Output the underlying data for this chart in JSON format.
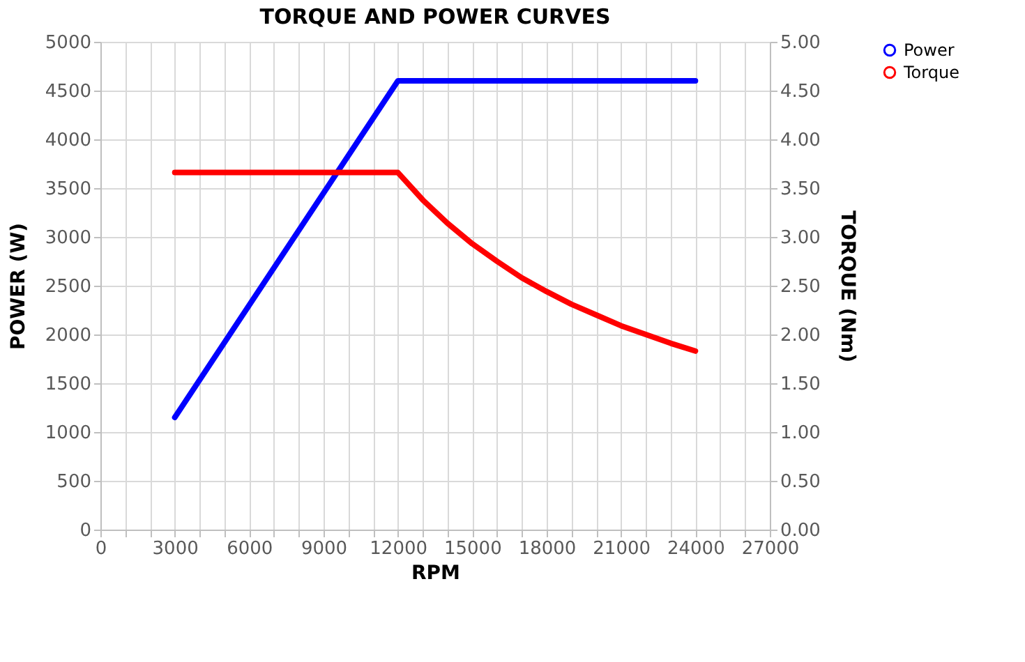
{
  "chart_data": {
    "type": "line",
    "title": "TORQUE AND POWER CURVES",
    "xlabel": "RPM",
    "ylabel": "POWER (W)",
    "y2label": "TORQUE (Nm)",
    "xlim": [
      0,
      27000
    ],
    "xticks": [
      0,
      {
        "value": 1000,
        "label": null
      },
      {
        "value": 2000,
        "label": null
      },
      3000,
      {
        "value": 4000,
        "label": null
      },
      {
        "value": 5000,
        "label": null
      },
      6000,
      {
        "value": 7000,
        "label": null
      },
      {
        "value": 8000,
        "label": null
      },
      9000,
      {
        "value": 10000,
        "label": null
      },
      {
        "value": 11000,
        "label": null
      },
      12000,
      {
        "value": 13000,
        "label": null
      },
      {
        "value": 14000,
        "label": null
      },
      15000,
      {
        "value": 16000,
        "label": null
      },
      {
        "value": 17000,
        "label": null
      },
      18000,
      {
        "value": 19000,
        "label": null
      },
      {
        "value": 20000,
        "label": null
      },
      21000,
      {
        "value": 22000,
        "label": null
      },
      {
        "value": 23000,
        "label": null
      },
      24000,
      {
        "value": 25000,
        "label": null
      },
      {
        "value": 26000,
        "label": null
      },
      27000
    ],
    "ylim": [
      0,
      5000
    ],
    "yticks": [
      0,
      500,
      1000,
      1500,
      2000,
      2500,
      3000,
      3500,
      4000,
      4500,
      5000
    ],
    "y2lim": [
      0,
      5
    ],
    "y2ticks": [
      {
        "value": 0,
        "label": "0.00"
      },
      {
        "value": 0.5,
        "label": "0.50"
      },
      {
        "value": 1,
        "label": "1.00"
      },
      {
        "value": 1.5,
        "label": "1.50"
      },
      {
        "value": 2,
        "label": "2.00"
      },
      {
        "value": 2.5,
        "label": "2.50"
      },
      {
        "value": 3,
        "label": "3.00"
      },
      {
        "value": 3.5,
        "label": "3.50"
      },
      {
        "value": 4,
        "label": "4.00"
      },
      {
        "value": 4.5,
        "label": "4.50"
      },
      {
        "value": 5,
        "label": "5.00"
      }
    ],
    "grid": true,
    "legend": "right",
    "marker": "none",
    "line_style": "solid",
    "series": [
      {
        "name": "Power",
        "color": "#0000ff",
        "x": [
          3000,
          12000,
          24000
        ],
        "values": [
          1150,
          4600,
          4600
        ]
      },
      {
        "name": "Torque",
        "color": "#ff0000",
        "axis": "y2",
        "x": [
          3000,
          12000,
          13000,
          14000,
          15000,
          16000,
          17000,
          18000,
          19000,
          20000,
          21000,
          22000,
          23000,
          24000
        ],
        "values": [
          3.66,
          3.66,
          3.38,
          3.14,
          2.93,
          2.75,
          2.58,
          2.44,
          2.31,
          2.2,
          2.09,
          2.0,
          1.91,
          1.83
        ]
      }
    ]
  }
}
